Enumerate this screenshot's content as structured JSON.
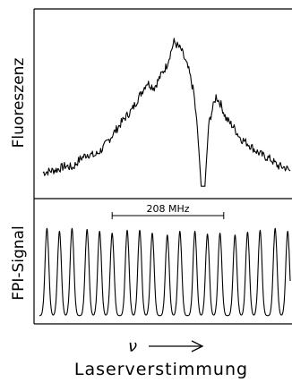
{
  "figure": {
    "nu_symbol": "ν",
    "xlabel": "Laserverstimmung"
  },
  "chart_data": [
    {
      "type": "line",
      "ylabel": "Fluoreszenz",
      "x_range": [
        0,
        1
      ],
      "y_range": [
        0,
        1
      ],
      "series": [
        {
          "x": [
            0.0,
            0.03,
            0.06,
            0.09,
            0.12,
            0.15,
            0.18,
            0.21,
            0.24,
            0.27,
            0.3,
            0.33,
            0.36,
            0.39,
            0.42,
            0.45,
            0.48,
            0.5,
            0.53,
            0.56,
            0.59,
            0.61,
            0.625,
            0.64,
            0.655,
            0.67,
            0.685,
            0.7,
            0.72,
            0.74,
            0.77,
            0.8,
            0.83,
            0.86,
            0.89,
            0.92,
            0.95,
            0.98,
            1.0
          ],
          "y": [
            0.1,
            0.11,
            0.12,
            0.14,
            0.13,
            0.18,
            0.21,
            0.2,
            0.24,
            0.3,
            0.36,
            0.42,
            0.47,
            0.55,
            0.63,
            0.6,
            0.68,
            0.73,
            0.87,
            0.82,
            0.7,
            0.57,
            0.35,
            0.02,
            0.02,
            0.38,
            0.47,
            0.55,
            0.5,
            0.42,
            0.37,
            0.3,
            0.27,
            0.23,
            0.2,
            0.18,
            0.14,
            0.13,
            0.11
          ]
        }
      ]
    },
    {
      "type": "line",
      "ylabel": "FPI-Signal",
      "x_range": [
        0,
        1
      ],
      "y_range": [
        0,
        1
      ],
      "annotations": [
        {
          "text": "208 MHz",
          "x_start": 0.29,
          "x_end": 0.735
        }
      ],
      "series": [
        {
          "peaks_x": [
            0.03,
            0.08,
            0.13,
            0.19,
            0.24,
            0.29,
            0.35,
            0.4,
            0.45,
            0.51,
            0.56,
            0.62,
            0.67,
            0.72,
            0.78,
            0.83,
            0.88,
            0.94,
            0.99
          ],
          "peaks_y": [
            0.95,
            0.92,
            0.95,
            0.94,
            0.92,
            0.9,
            0.93,
            0.93,
            0.9,
            0.88,
            0.92,
            0.92,
            0.89,
            0.9,
            0.88,
            0.91,
            0.93,
            0.95,
            0.92
          ],
          "baseline": 0.03
        }
      ]
    }
  ]
}
